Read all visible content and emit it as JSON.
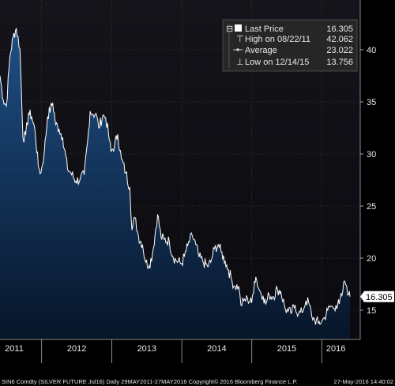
{
  "colors": {
    "background": "#000000",
    "plot_top": "#1b1b20",
    "area_top": "#1e4f86",
    "area_bottom": "#071529",
    "line": "#ffffff",
    "grid": "#4a4a4a",
    "legend_bg": "#2a2a2a",
    "price_tag": "#ffffff",
    "footer_bg": "#000000"
  },
  "legend": {
    "items": [
      {
        "icon": "filled-square-icon",
        "label": "Last Price",
        "value": "16.305"
      },
      {
        "icon": "high-marker-icon",
        "label": "High on 08/22/11",
        "value": "42.062"
      },
      {
        "icon": "average-line-icon",
        "label": "Average",
        "value": "23.022"
      },
      {
        "icon": "low-marker-icon",
        "label": "Low on 12/14/15",
        "value": "13.756"
      }
    ]
  },
  "price_tag": "16.305",
  "footer": {
    "left": "SIN6 Comdty (SILVER FUTURE    Jul16)  Daily 29MAY2011-27MAY2016 Copyright© 2016 Bloomberg Finance L.P.",
    "right": "27-May-2016 14:40:02"
  },
  "chart_data": {
    "type": "area",
    "title": "",
    "xlabel": "",
    "ylabel": "",
    "x_tick_labels": [
      "2011",
      "2012",
      "2013",
      "2014",
      "2015",
      "2016"
    ],
    "y_tick_labels": [
      "15",
      "20",
      "25",
      "30",
      "35",
      "40"
    ],
    "ylim": [
      10,
      45
    ],
    "xlim": [
      "2011-05-29",
      "2016-05-27"
    ],
    "grid": true,
    "y_axis_side": "right",
    "legend_placement": "top-right",
    "series": [
      {
        "name": "Last Price",
        "x": [
          "2011-05-29",
          "2011-06-15",
          "2011-07-01",
          "2011-07-20",
          "2011-08-05",
          "2011-08-22",
          "2011-09-10",
          "2011-09-26",
          "2011-10-10",
          "2011-10-25",
          "2011-11-10",
          "2011-11-28",
          "2011-12-15",
          "2011-12-29",
          "2012-01-15",
          "2012-02-01",
          "2012-02-28",
          "2012-03-15",
          "2012-04-01",
          "2012-04-20",
          "2012-05-15",
          "2012-06-01",
          "2012-06-28",
          "2012-07-20",
          "2012-08-10",
          "2012-08-28",
          "2012-09-10",
          "2012-09-25",
          "2012-10-10",
          "2012-10-25",
          "2012-11-15",
          "2012-11-30",
          "2012-12-15",
          "2012-12-28",
          "2013-01-15",
          "2013-02-01",
          "2013-02-20",
          "2013-03-15",
          "2013-04-05",
          "2013-04-16",
          "2013-05-01",
          "2013-05-20",
          "2013-06-10",
          "2013-06-27",
          "2013-07-15",
          "2013-08-01",
          "2013-08-28",
          "2013-09-15",
          "2013-10-01",
          "2013-10-28",
          "2013-11-15",
          "2013-12-01",
          "2013-12-31",
          "2014-01-15",
          "2014-02-01",
          "2014-02-24",
          "2014-03-15",
          "2014-04-01",
          "2014-04-20",
          "2014-05-15",
          "2014-06-01",
          "2014-06-20",
          "2014-07-10",
          "2014-07-25",
          "2014-08-15",
          "2014-09-01",
          "2014-09-20",
          "2014-10-05",
          "2014-10-25",
          "2014-11-05",
          "2014-11-20",
          "2014-12-10",
          "2014-12-31",
          "2015-01-15",
          "2015-01-22",
          "2015-02-10",
          "2015-03-01",
          "2015-03-15",
          "2015-04-01",
          "2015-04-20",
          "2015-05-15",
          "2015-06-01",
          "2015-06-25",
          "2015-07-10",
          "2015-07-24",
          "2015-08-15",
          "2015-09-01",
          "2015-09-20",
          "2015-10-10",
          "2015-10-25",
          "2015-11-10",
          "2015-11-25",
          "2015-12-14",
          "2015-12-31",
          "2016-01-15",
          "2016-02-01",
          "2016-02-15",
          "2016-03-01",
          "2016-03-15",
          "2016-04-01",
          "2016-04-15",
          "2016-04-29",
          "2016-05-10",
          "2016-05-20",
          "2016-05-27"
        ],
        "values": [
          37.5,
          35.2,
          34.6,
          39.4,
          41.2,
          42.06,
          40.1,
          31.5,
          31.8,
          33.9,
          33.6,
          32.2,
          28.8,
          28.2,
          30.2,
          33.6,
          34.9,
          32.8,
          32.4,
          31.6,
          28.6,
          28.2,
          27.4,
          27.6,
          28.0,
          31.2,
          34.1,
          33.8,
          33.9,
          32.5,
          33.7,
          33.5,
          31.9,
          30.2,
          30.8,
          31.9,
          29.5,
          28.2,
          26.8,
          22.7,
          23.9,
          22.1,
          21.3,
          19.6,
          19.3,
          20.4,
          24.2,
          22.0,
          21.8,
          21.6,
          20.2,
          19.8,
          19.5,
          20.2,
          21.2,
          22.2,
          21.3,
          20.1,
          19.7,
          19.2,
          19.6,
          20.9,
          21.3,
          20.6,
          19.7,
          18.9,
          17.8,
          17.3,
          17.3,
          15.5,
          15.9,
          16.1,
          15.7,
          17.8,
          18.2,
          16.9,
          16.4,
          15.6,
          16.5,
          16.3,
          17.0,
          16.8,
          15.1,
          14.9,
          14.7,
          15.5,
          14.6,
          14.8,
          15.9,
          15.7,
          14.4,
          14.1,
          13.76,
          13.9,
          14.3,
          15.0,
          15.4,
          15.2,
          15.5,
          15.6,
          16.4,
          17.8,
          17.3,
          16.5,
          16.3
        ]
      }
    ],
    "annotations": [
      {
        "label": "High on 08/22/11",
        "value": 42.062
      },
      {
        "label": "Average",
        "value": 23.022
      },
      {
        "label": "Low on 12/14/15",
        "value": 13.756
      },
      {
        "label": "Last Price",
        "value": 16.305
      }
    ]
  }
}
